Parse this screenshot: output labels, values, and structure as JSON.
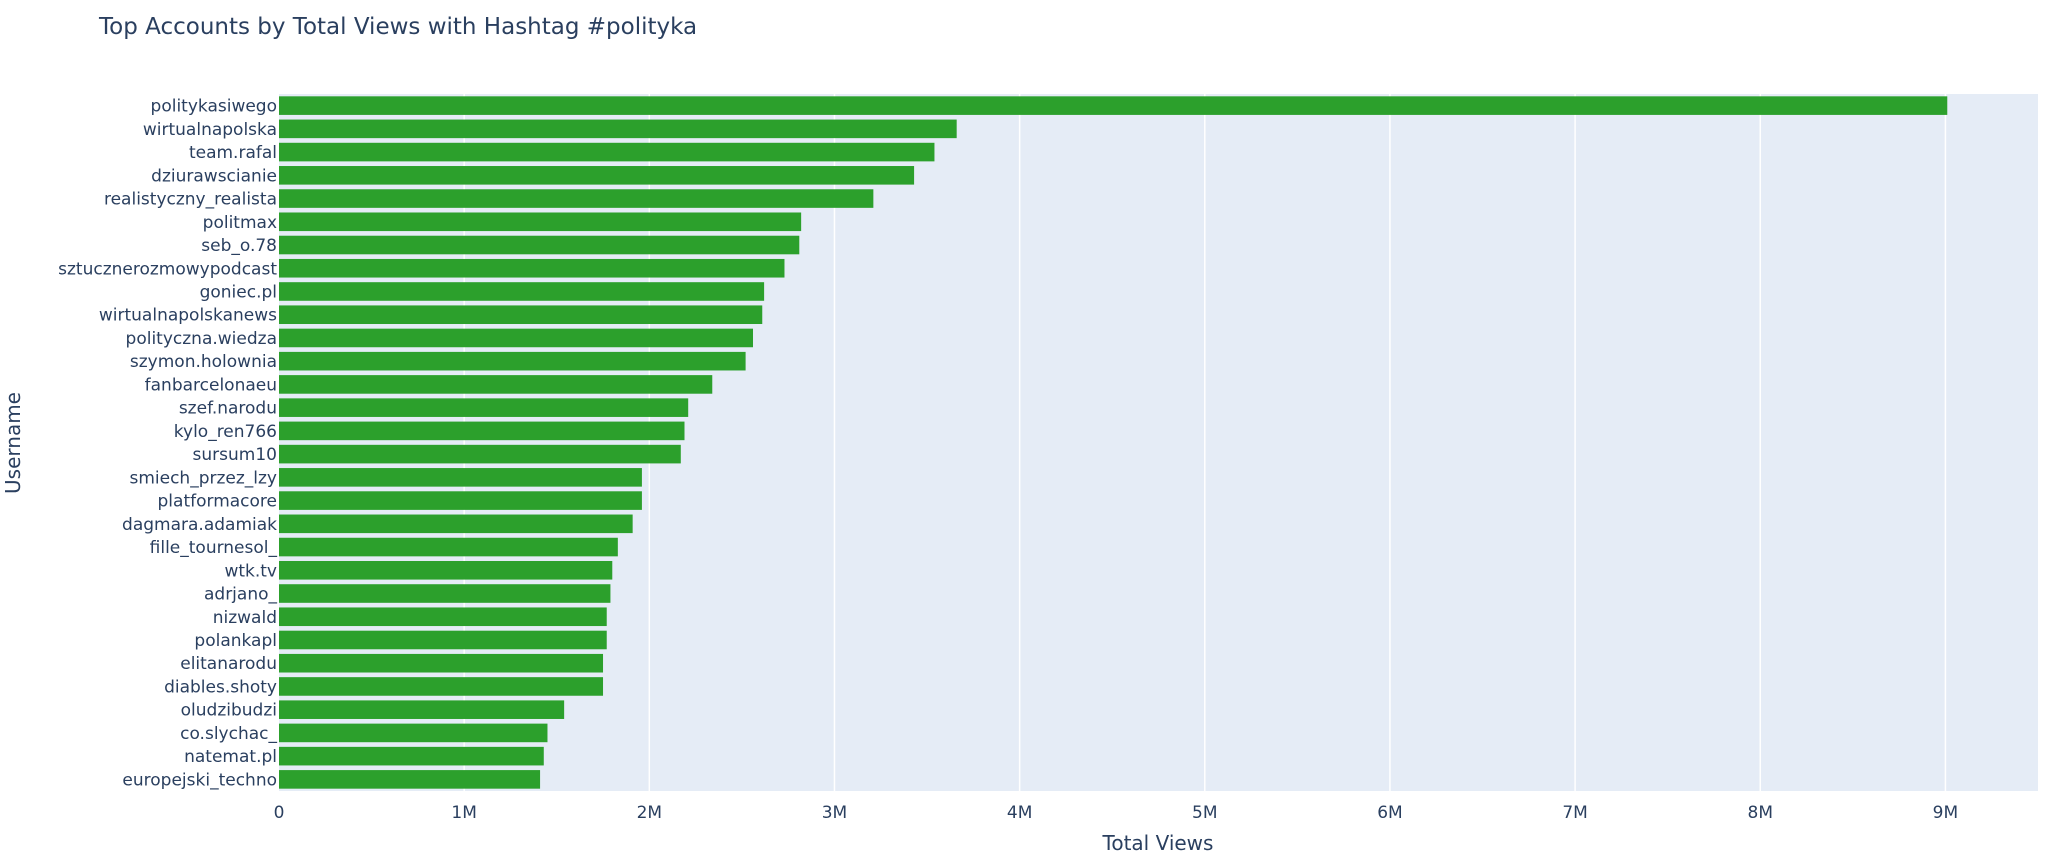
{
  "chart_data": {
    "type": "bar",
    "orientation": "horizontal",
    "title": "Top Accounts by Total Views with Hashtag #polityka",
    "xlabel": "Total Views",
    "ylabel": "Username",
    "xlim": [
      0,
      9500000
    ],
    "x_ticks": [
      {
        "value": 0,
        "label": "0"
      },
      {
        "value": 1000000,
        "label": "1M"
      },
      {
        "value": 2000000,
        "label": "2M"
      },
      {
        "value": 3000000,
        "label": "3M"
      },
      {
        "value": 4000000,
        "label": "4M"
      },
      {
        "value": 5000000,
        "label": "5M"
      },
      {
        "value": 6000000,
        "label": "6M"
      },
      {
        "value": 7000000,
        "label": "7M"
      },
      {
        "value": 8000000,
        "label": "8M"
      },
      {
        "value": 9000000,
        "label": "9M"
      }
    ],
    "grid": true,
    "bar_color": "#2ca02c",
    "plot_background": "#e5ecf6",
    "categories": [
      "politykasiwego",
      "wirtualnapolska",
      "team.rafal",
      "dziurawscianie",
      "realistyczny_realista",
      "politmax",
      "seb_o.78",
      "sztucznerozmowypodcast",
      "goniec.pl",
      "wirtualnapolskanews",
      "polityczna.wiedza",
      "szymon.holownia",
      "fanbarcelonaeu",
      "szef.narodu",
      "kylo_ren766",
      "sursum10",
      "smiech_przez_lzy",
      "platformacore",
      "dagmara.adamiak",
      "fille_tournesol_",
      "wtk.tv",
      "adrjano_",
      "nizwald",
      "polankapl",
      "elitanarodu",
      "diables.shoty",
      "oludzibudzi",
      "co.slychac_",
      "natemat.pl",
      "europejski_techno"
    ],
    "values": [
      9010000,
      3660000,
      3540000,
      3430000,
      3210000,
      2820000,
      2810000,
      2730000,
      2620000,
      2610000,
      2560000,
      2520000,
      2340000,
      2210000,
      2190000,
      2170000,
      1960000,
      1960000,
      1910000,
      1830000,
      1800000,
      1790000,
      1770000,
      1770000,
      1750000,
      1750000,
      1540000,
      1450000,
      1430000,
      1410000
    ]
  }
}
